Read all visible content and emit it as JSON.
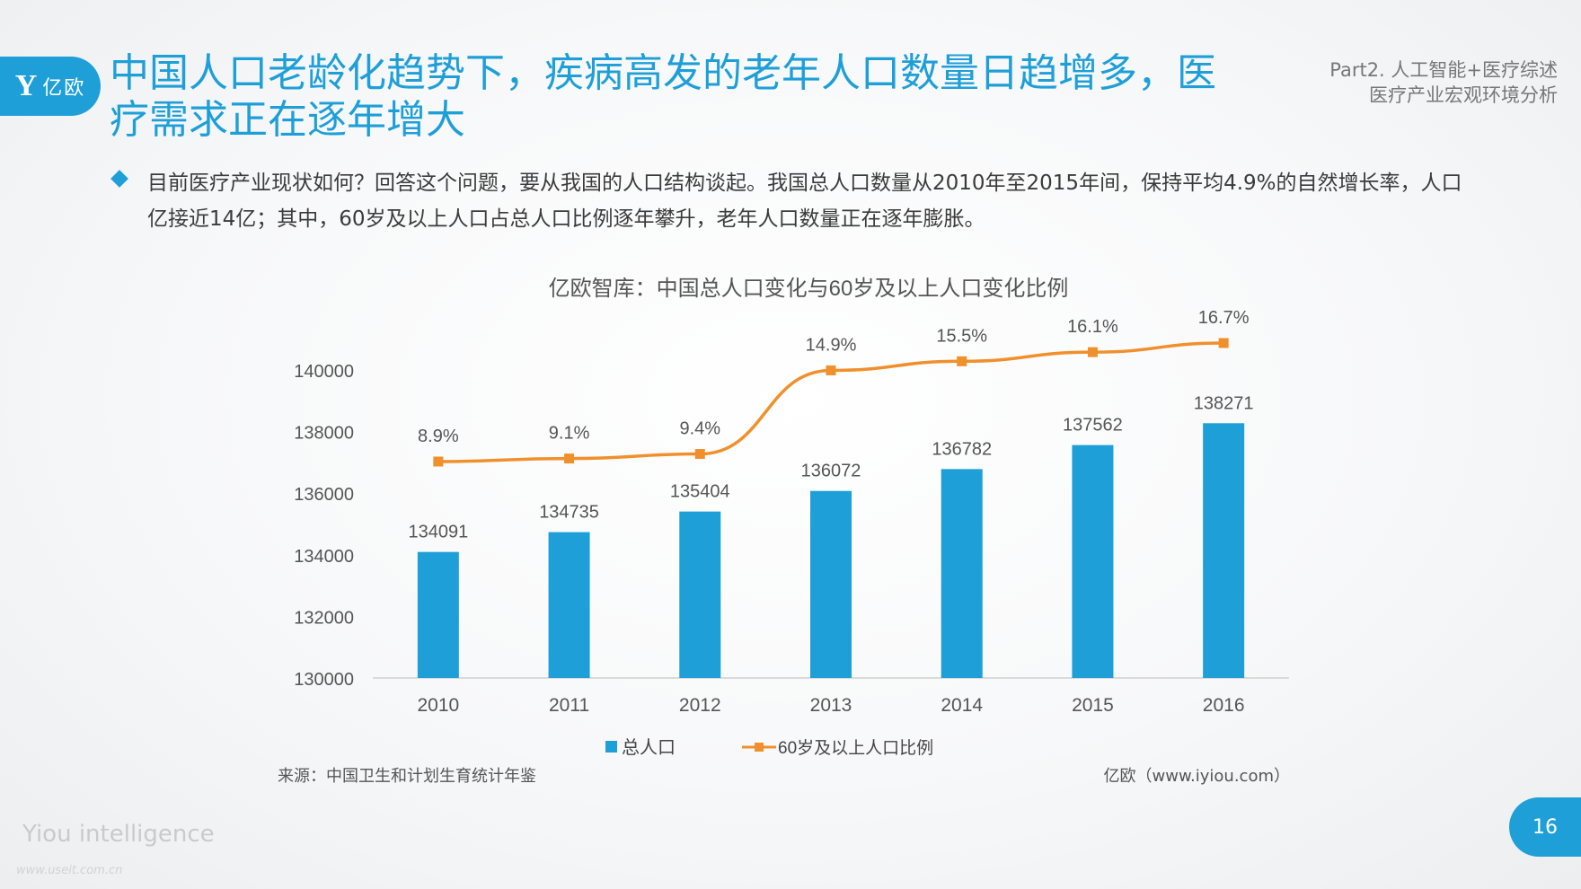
{
  "logo": {
    "icon": "Y",
    "text": "亿欧"
  },
  "header": {
    "title": "中国人口老龄化趋势下，疾病高发的老年人口数量日趋增多，医疗需求正在逐年增大",
    "part_line1": "Part2. 人工智能+医疗综述",
    "part_line2": "医疗产业宏观环境分析"
  },
  "bullet": {
    "text": "目前医疗产业现状如何？回答这个问题，要从我国的人口结构谈起。我国总人口数量从2010年至2015年间，保持平均4.9%的自然增长率，人口亿接近14亿；其中，60岁及以上人口占总人口比例逐年攀升，老年人口数量正在逐年膨胀。"
  },
  "chart_data": {
    "type": "bar",
    "title": "亿欧智库：中国总人口变化与60岁及以上人口变化比例",
    "categories": [
      "2010",
      "2011",
      "2012",
      "2013",
      "2014",
      "2015",
      "2016"
    ],
    "series": [
      {
        "name": "总人口",
        "type": "bar",
        "values": [
          134091,
          134735,
          135404,
          136072,
          136782,
          137562,
          138271
        ],
        "labels": [
          "134091",
          "134735",
          "135404",
          "136072",
          "136782",
          "137562",
          "138271"
        ],
        "color": "#1e9fd8"
      },
      {
        "name": "60岁及以上人口比例",
        "type": "line",
        "values": [
          8.9,
          9.1,
          9.4,
          14.9,
          15.5,
          16.1,
          16.7
        ],
        "labels": [
          "8.9%",
          "9.1%",
          "9.4%",
          "14.9%",
          "15.5%",
          "16.1%",
          "16.7%"
        ],
        "color": "#f0902c"
      }
    ],
    "ylim": [
      130000,
      140000
    ],
    "yticks": [
      "130000",
      "132000",
      "134000",
      "136000",
      "138000",
      "140000"
    ],
    "legend": "bottom-center",
    "grid": false
  },
  "source": "来源：中国卫生和计划生育统计年鉴",
  "credit": "亿欧（www.iyiou.com）",
  "footer": {
    "brand": "Yiou intelligence",
    "watermark": "www.useit.com.cn",
    "page": "16"
  }
}
